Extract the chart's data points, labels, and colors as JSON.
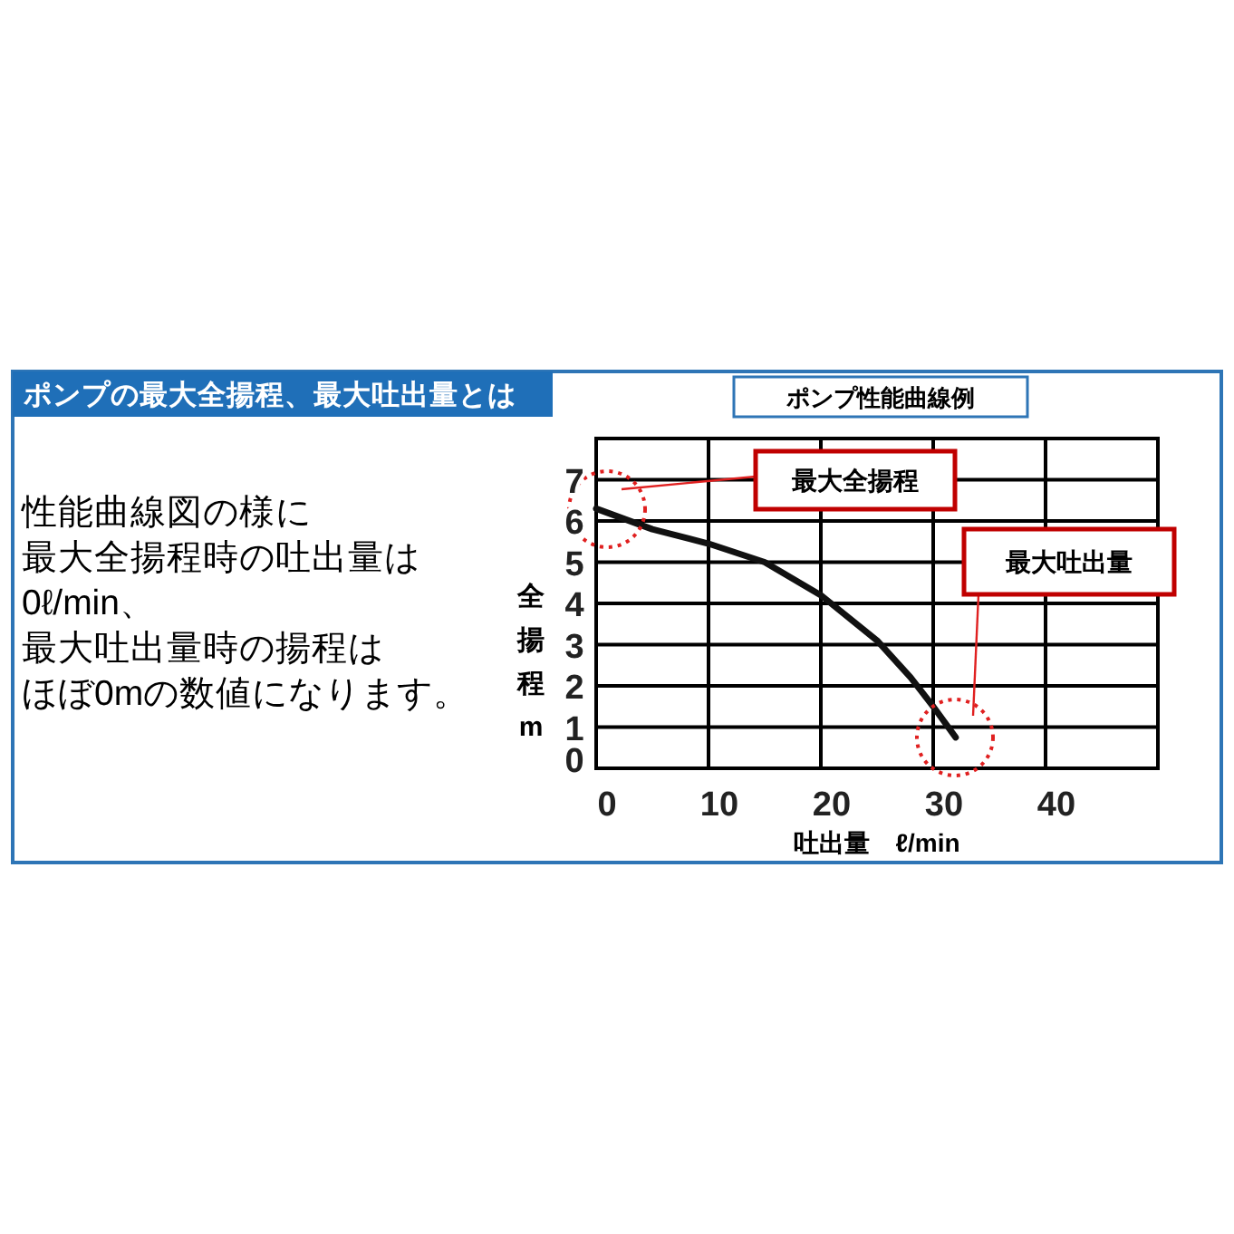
{
  "chart_data": {
    "type": "line",
    "title": "ポンプ性能曲線例",
    "xlabel": "吐出量　ℓ/min",
    "ylabel": "全揚程 m",
    "x": [
      0,
      5,
      10,
      15,
      20,
      25,
      28,
      30,
      32
    ],
    "series": [
      {
        "color": "#111111",
        "values": [
          6.3,
          5.8,
          5.45,
          5.0,
          4.2,
          3.1,
          2.2,
          1.5,
          0.75
        ]
      }
    ],
    "xlim": [
      0,
      50
    ],
    "xticks": [
      0,
      10,
      20,
      30,
      40
    ],
    "ylim": [
      0,
      8
    ],
    "yticks": [
      0,
      1,
      2,
      3,
      4,
      5,
      6,
      7
    ],
    "grid": true,
    "marker": "none",
    "line_style": "solid",
    "annotations": [
      "ポンプの最大全揚程、最大吐出量とは",
      "性能曲線図の様に",
      "最大全揚程時の吐出量は",
      "0ℓ/min、",
      "最大吐出量時の揚程は",
      "ほぼ0mの数値になります。",
      "最大全揚程",
      "最大吐出量"
    ]
  }
}
